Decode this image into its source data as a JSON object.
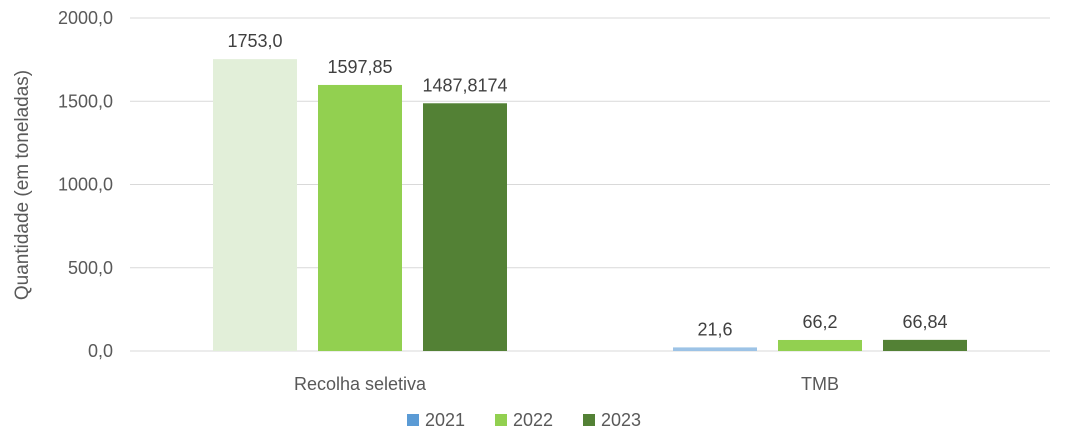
{
  "chart_data": {
    "type": "bar",
    "title": "",
    "xlabel": "",
    "ylabel": "Quantidade (em toneladas)",
    "ylim": [
      0,
      2000
    ],
    "yticks": [
      0,
      500,
      1000,
      1500,
      2000
    ],
    "ytick_labels": [
      "0,0",
      "500,0",
      "1000,0",
      "1500,0",
      "2000,0"
    ],
    "grid": true,
    "legend_position": "bottom",
    "categories": [
      "Recolha seletiva",
      "TMB"
    ],
    "series": [
      {
        "name": "2021",
        "color": "#e2efd9",
        "legend_color": "#5b9bd5",
        "point_colors": [
          "#e2efd9",
          "#9dc3e6"
        ],
        "values": [
          1753.0,
          21.6
        ],
        "labels": [
          "1753,0",
          "21,6"
        ]
      },
      {
        "name": "2022",
        "color": "#92d050",
        "values": [
          1597.85,
          66.2
        ],
        "labels": [
          "1597,85",
          "66,2"
        ]
      },
      {
        "name": "2023",
        "color": "#538135",
        "values": [
          1487.8174,
          66.84
        ],
        "labels": [
          "1487,8174",
          "66,84"
        ]
      }
    ]
  }
}
